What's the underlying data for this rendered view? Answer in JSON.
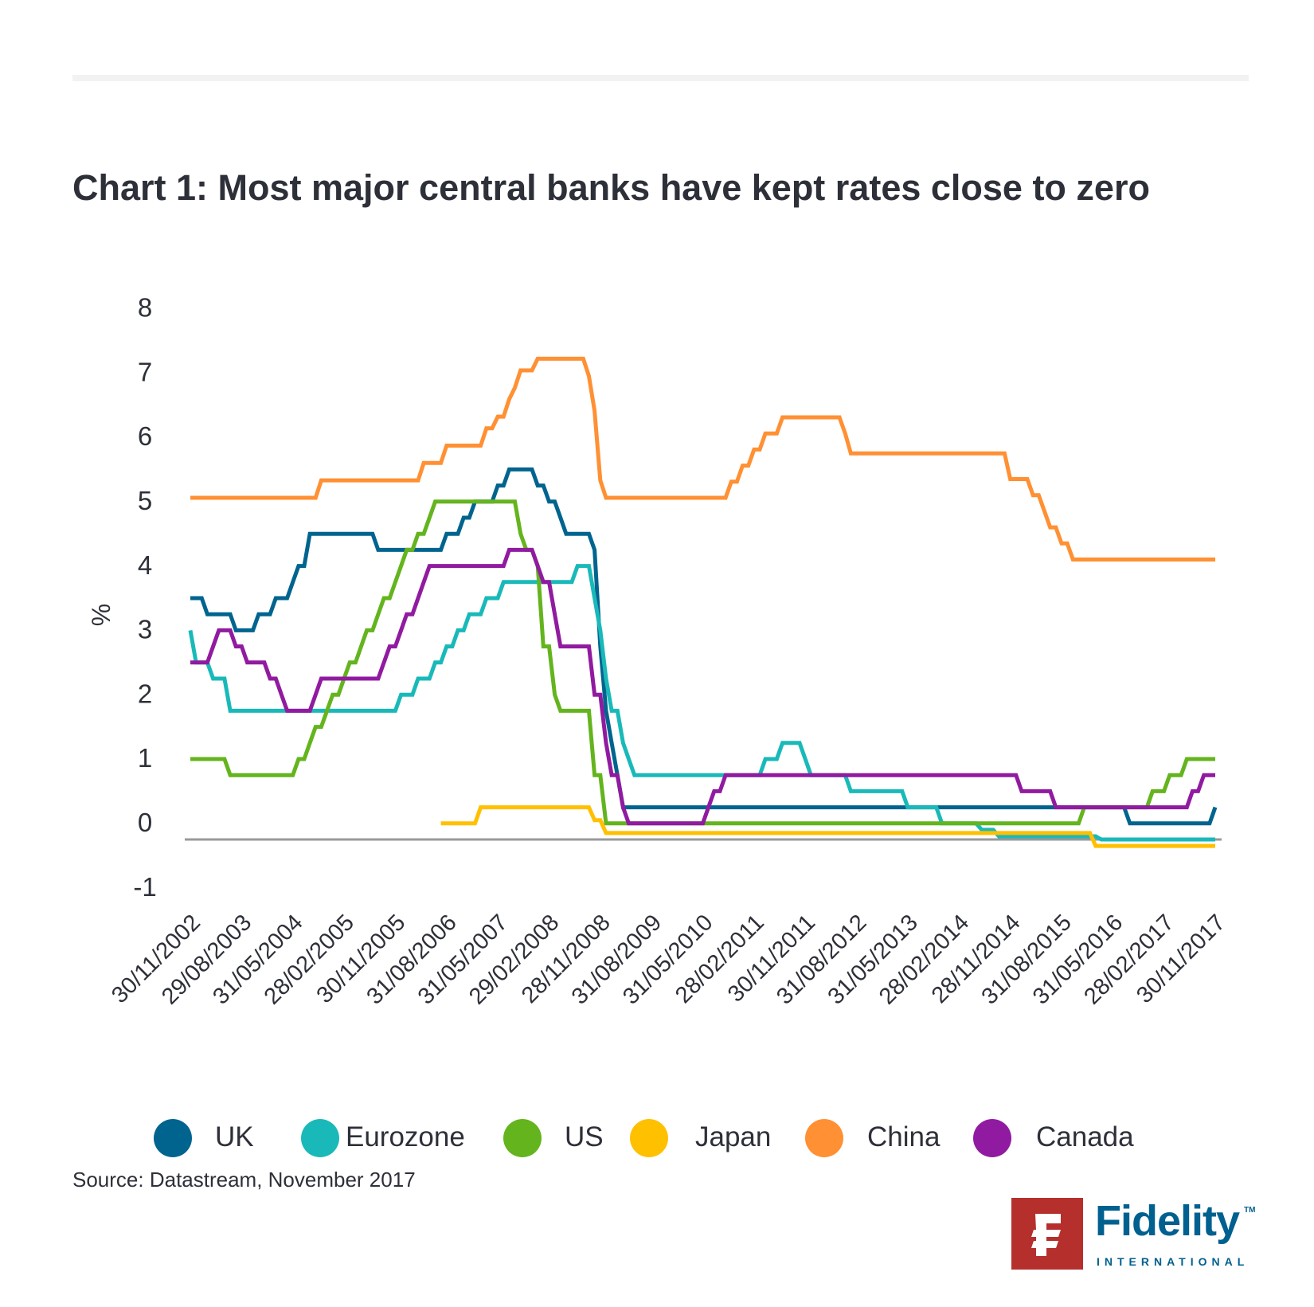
{
  "chart_data": {
    "type": "line",
    "title": "Chart 1: Most major central banks have kept rates close to zero",
    "ylabel": "%",
    "xlabel": "",
    "ylim": [
      -1,
      8
    ],
    "yticks": [
      "8",
      "7",
      "6",
      "5",
      "4",
      "3",
      "2",
      "1",
      "0",
      "-1"
    ],
    "ytick_values": [
      8,
      7,
      6,
      5,
      4,
      3,
      2,
      1,
      0,
      -1
    ],
    "x_start": "2002-11",
    "x_end": "2017-11",
    "x_tick_labels": [
      "30/11/2002",
      "29/08/2003",
      "31/05/2004",
      "28/02/2005",
      "30/11/2005",
      "31/08/2006",
      "31/05/2007",
      "29/02/2008",
      "28/11/2008",
      "31/08/2009",
      "31/05/2010",
      "28/02/2011",
      "30/11/2011",
      "31/08/2012",
      "31/05/2013",
      "28/02/2014",
      "28/11/2014",
      "31/08/2015",
      "31/05/2016",
      "28/02/2017",
      "30/11/2017"
    ],
    "legend_position": "bottom",
    "grid": false,
    "series_format": "monthly step series; each entry [YYYY-MM, rate %] holds until next change",
    "series": [
      {
        "name": "UK",
        "color": "#00648f",
        "steps": [
          [
            "2002-11",
            3.75
          ],
          [
            "2003-02",
            3.5
          ],
          [
            "2003-07",
            3.25
          ],
          [
            "2003-11",
            3.5
          ],
          [
            "2004-02",
            3.75
          ],
          [
            "2004-05",
            4.0
          ],
          [
            "2004-06",
            4.25
          ],
          [
            "2004-08",
            4.75
          ],
          [
            "2005-08",
            4.5
          ],
          [
            "2006-08",
            4.75
          ],
          [
            "2006-11",
            5.0
          ],
          [
            "2007-01",
            5.25
          ],
          [
            "2007-05",
            5.5
          ],
          [
            "2007-07",
            5.75
          ],
          [
            "2007-12",
            5.5
          ],
          [
            "2008-02",
            5.25
          ],
          [
            "2008-04",
            5.0
          ],
          [
            "2008-05",
            4.75
          ],
          [
            "2008-10",
            4.5
          ],
          [
            "2008-11",
            3.0
          ],
          [
            "2008-12",
            2.0
          ],
          [
            "2009-01",
            1.5
          ],
          [
            "2009-02",
            1.0
          ],
          [
            "2009-03",
            0.5
          ],
          [
            "2016-08",
            0.25
          ],
          [
            "2017-11",
            0.5
          ]
        ]
      },
      {
        "name": "Eurozone",
        "color": "#1ab9b9",
        "steps": [
          [
            "2002-11",
            3.25
          ],
          [
            "2002-12",
            2.75
          ],
          [
            "2003-03",
            2.5
          ],
          [
            "2003-06",
            2.0
          ],
          [
            "2005-12",
            2.25
          ],
          [
            "2006-03",
            2.5
          ],
          [
            "2006-06",
            2.75
          ],
          [
            "2006-08",
            3.0
          ],
          [
            "2006-10",
            3.25
          ],
          [
            "2006-12",
            3.5
          ],
          [
            "2007-03",
            3.75
          ],
          [
            "2007-06",
            4.0
          ],
          [
            "2008-07",
            4.25
          ],
          [
            "2008-10",
            3.75
          ],
          [
            "2008-11",
            3.25
          ],
          [
            "2008-12",
            2.5
          ],
          [
            "2009-01",
            2.0
          ],
          [
            "2009-03",
            1.5
          ],
          [
            "2009-04",
            1.25
          ],
          [
            "2009-05",
            1.0
          ],
          [
            "2011-04",
            1.25
          ],
          [
            "2011-07",
            1.5
          ],
          [
            "2011-11",
            1.25
          ],
          [
            "2011-12",
            1.0
          ],
          [
            "2012-07",
            0.75
          ],
          [
            "2013-05",
            0.5
          ],
          [
            "2013-11",
            0.25
          ],
          [
            "2014-06",
            0.15
          ],
          [
            "2014-09",
            0.05
          ],
          [
            "2016-03",
            0.0
          ]
        ]
      },
      {
        "name": "US",
        "color": "#64b41e",
        "steps": [
          [
            "2002-11",
            1.25
          ],
          [
            "2003-06",
            1.0
          ],
          [
            "2004-06",
            1.25
          ],
          [
            "2004-08",
            1.5
          ],
          [
            "2004-09",
            1.75
          ],
          [
            "2004-11",
            2.0
          ],
          [
            "2004-12",
            2.25
          ],
          [
            "2005-02",
            2.5
          ],
          [
            "2005-03",
            2.75
          ],
          [
            "2005-05",
            3.0
          ],
          [
            "2005-06",
            3.25
          ],
          [
            "2005-08",
            3.5
          ],
          [
            "2005-09",
            3.75
          ],
          [
            "2005-11",
            4.0
          ],
          [
            "2005-12",
            4.25
          ],
          [
            "2006-01",
            4.5
          ],
          [
            "2006-03",
            4.75
          ],
          [
            "2006-05",
            5.0
          ],
          [
            "2006-06",
            5.25
          ],
          [
            "2007-09",
            4.75
          ],
          [
            "2007-10",
            4.5
          ],
          [
            "2007-12",
            4.25
          ],
          [
            "2008-01",
            3.0
          ],
          [
            "2008-03",
            2.25
          ],
          [
            "2008-04",
            2.0
          ],
          [
            "2008-10",
            1.0
          ],
          [
            "2008-12",
            0.25
          ],
          [
            "2015-12",
            0.5
          ],
          [
            "2016-12",
            0.75
          ],
          [
            "2017-03",
            1.0
          ],
          [
            "2017-06",
            1.25
          ]
        ]
      },
      {
        "name": "Japan",
        "color": "#ffc000",
        "steps": [
          [
            "2006-07",
            0.25
          ],
          [
            "2007-02",
            0.5
          ],
          [
            "2008-10",
            0.3
          ],
          [
            "2008-12",
            0.1
          ],
          [
            "2016-02",
            -0.1
          ]
        ]
      },
      {
        "name": "China",
        "color": "#ff9033",
        "steps": [
          [
            "2002-11",
            5.31
          ],
          [
            "2004-10",
            5.58
          ],
          [
            "2006-04",
            5.85
          ],
          [
            "2006-08",
            6.12
          ],
          [
            "2007-03",
            6.39
          ],
          [
            "2007-05",
            6.57
          ],
          [
            "2007-07",
            6.84
          ],
          [
            "2007-08",
            7.02
          ],
          [
            "2007-09",
            7.29
          ],
          [
            "2007-12",
            7.47
          ],
          [
            "2008-09",
            7.2
          ],
          [
            "2008-10",
            6.66
          ],
          [
            "2008-11",
            5.58
          ],
          [
            "2008-12",
            5.31
          ],
          [
            "2010-10",
            5.56
          ],
          [
            "2010-12",
            5.81
          ],
          [
            "2011-02",
            6.06
          ],
          [
            "2011-04",
            6.31
          ],
          [
            "2011-07",
            6.56
          ],
          [
            "2012-06",
            6.31
          ],
          [
            "2012-07",
            6.0
          ],
          [
            "2014-11",
            5.6
          ],
          [
            "2015-03",
            5.35
          ],
          [
            "2015-05",
            5.1
          ],
          [
            "2015-06",
            4.85
          ],
          [
            "2015-08",
            4.6
          ],
          [
            "2015-10",
            4.35
          ]
        ]
      },
      {
        "name": "Canada",
        "color": "#911ba0",
        "steps": [
          [
            "2002-11",
            2.75
          ],
          [
            "2003-03",
            3.0
          ],
          [
            "2003-04",
            3.25
          ],
          [
            "2003-07",
            3.0
          ],
          [
            "2003-09",
            2.75
          ],
          [
            "2004-01",
            2.5
          ],
          [
            "2004-03",
            2.25
          ],
          [
            "2004-04",
            2.0
          ],
          [
            "2004-09",
            2.25
          ],
          [
            "2004-10",
            2.5
          ],
          [
            "2005-09",
            2.75
          ],
          [
            "2005-10",
            3.0
          ],
          [
            "2005-12",
            3.25
          ],
          [
            "2006-01",
            3.5
          ],
          [
            "2006-03",
            3.75
          ],
          [
            "2006-04",
            4.0
          ],
          [
            "2006-05",
            4.25
          ],
          [
            "2007-07",
            4.5
          ],
          [
            "2007-12",
            4.25
          ],
          [
            "2008-01",
            4.0
          ],
          [
            "2008-03",
            3.5
          ],
          [
            "2008-04",
            3.0
          ],
          [
            "2008-10",
            2.25
          ],
          [
            "2008-12",
            1.5
          ],
          [
            "2009-01",
            1.0
          ],
          [
            "2009-03",
            0.5
          ],
          [
            "2009-04",
            0.25
          ],
          [
            "2010-06",
            0.5
          ],
          [
            "2010-07",
            0.75
          ],
          [
            "2010-09",
            1.0
          ],
          [
            "2015-01",
            0.75
          ],
          [
            "2015-07",
            0.5
          ],
          [
            "2017-07",
            0.75
          ],
          [
            "2017-09",
            1.0
          ]
        ]
      }
    ]
  },
  "source": "Source: Datastream, November 2017",
  "logo": {
    "word": "Fidelity",
    "sub": "INTERNATIONAL",
    "tm": "TM"
  }
}
